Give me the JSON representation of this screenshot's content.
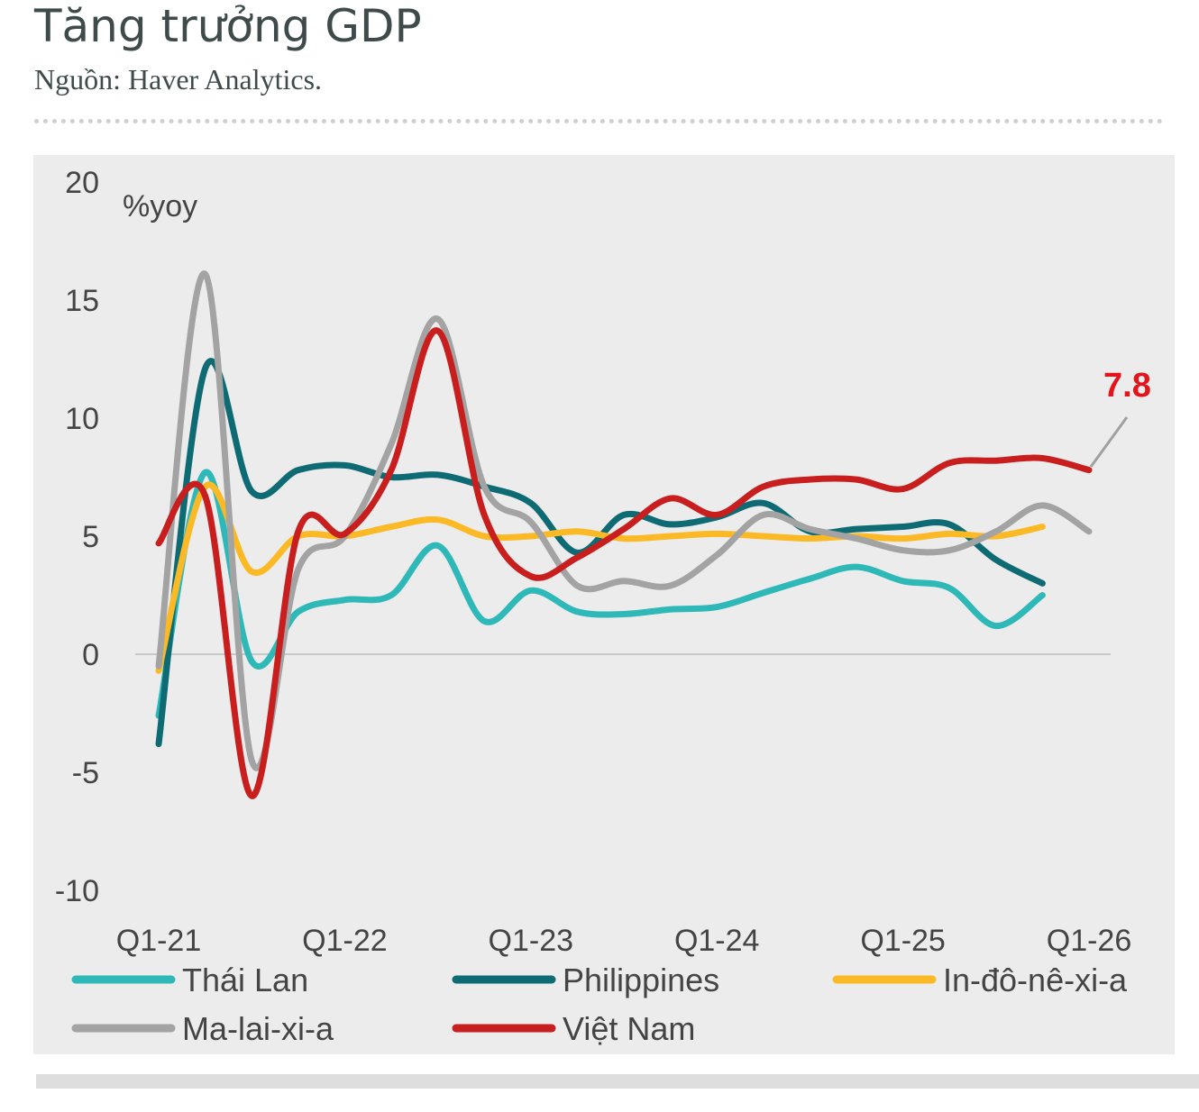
{
  "title": "Tăng trưởng GDP",
  "source": "Nguồn: Haver Analytics.",
  "colors": {
    "panel_bg": "#ececec",
    "thai": "#2fb8b8",
    "phil": "#0e6b73",
    "indo": "#fbb925",
    "mala": "#a3a3a3",
    "viet": "#c81e1e",
    "annotation": "#e4141c"
  },
  "chart_data": {
    "type": "line",
    "ylabel": "%yoy",
    "ylim": [
      -10,
      20
    ],
    "yticks": [
      "20",
      "15",
      "10",
      "5",
      "0",
      "-5",
      "-10"
    ],
    "ytick_values": [
      20,
      15,
      10,
      5,
      0,
      -5,
      -10
    ],
    "xtick_labels": [
      "Q1-21",
      "Q1-22",
      "Q1-23",
      "Q1-24",
      "Q1-25",
      "Q1-26"
    ],
    "xtick_quarters": [
      0,
      4,
      8,
      12,
      16,
      20
    ],
    "grid": false,
    "legend_position": "bottom",
    "annotation": {
      "text": "7.8",
      "series": "Việt Nam",
      "value": 7.8
    },
    "series": [
      {
        "name": "Thái Lan",
        "color_key": "thai",
        "values": [
          -2.6,
          7.7,
          -0.3,
          1.8,
          2.3,
          2.5,
          4.6,
          1.4,
          2.7,
          1.8,
          1.7,
          1.9,
          2.0,
          2.6,
          3.2,
          3.7,
          3.1,
          2.8,
          1.2,
          2.5
        ]
      },
      {
        "name": "Philippines",
        "color_key": "phil",
        "values": [
          -3.8,
          12.1,
          6.9,
          7.8,
          8.0,
          7.5,
          7.6,
          7.1,
          6.4,
          4.3,
          5.9,
          5.5,
          5.8,
          6.4,
          5.2,
          5.3,
          5.4,
          5.5,
          4.0,
          3.0
        ]
      },
      {
        "name": "In-đô-nê-xi-a",
        "color_key": "indo",
        "values": [
          -0.7,
          7.1,
          3.5,
          5.0,
          5.0,
          5.4,
          5.7,
          5.0,
          5.0,
          5.2,
          4.9,
          5.0,
          5.1,
          5.0,
          4.9,
          5.0,
          4.9,
          5.1,
          5.0,
          5.4
        ]
      },
      {
        "name": "Ma-lai-xi-a",
        "color_key": "mala",
        "values": [
          -0.5,
          16.1,
          -4.5,
          3.6,
          5.0,
          8.9,
          14.2,
          7.1,
          5.6,
          2.9,
          3.1,
          2.9,
          4.2,
          5.9,
          5.3,
          4.9,
          4.4,
          4.4,
          5.2,
          6.3,
          5.2
        ]
      },
      {
        "name": "Việt Nam",
        "color_key": "viet",
        "values": [
          4.7,
          6.7,
          -6.0,
          5.2,
          5.1,
          7.8,
          13.7,
          5.9,
          3.3,
          4.1,
          5.3,
          6.6,
          5.9,
          7.1,
          7.4,
          7.4,
          7.0,
          8.1,
          8.2,
          8.3,
          7.8
        ]
      }
    ]
  }
}
